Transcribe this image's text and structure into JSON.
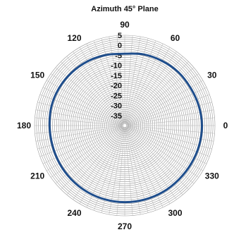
{
  "chart_data": {
    "type": "line",
    "polar": true,
    "title": "Azimuth 45° Plane",
    "angle_ticks": [
      0,
      30,
      60,
      90,
      120,
      150,
      180,
      210,
      240,
      270,
      300,
      330
    ],
    "angle_tick_labels": [
      "0",
      "30",
      "60",
      "90",
      "120",
      "150",
      "180",
      "210",
      "240",
      "270",
      "300",
      "330"
    ],
    "angle_direction": "counterclockwise",
    "angle_zero": "right",
    "radial_ticks": [
      5,
      0,
      -5,
      -10,
      -15,
      -20,
      -25,
      -30,
      -35
    ],
    "radial_tick_labels": [
      "5",
      "0",
      "-5",
      "-10",
      "-15",
      "-20",
      "-25",
      "-30",
      "-35"
    ],
    "rlim": [
      -40,
      5
    ],
    "radial_label_position": "along 90° spoke",
    "grid": true,
    "series": [
      {
        "color": "#1f4e8c",
        "angle": [
          0,
          15,
          30,
          45,
          60,
          75,
          90,
          105,
          120,
          135,
          150,
          165,
          180,
          195,
          210,
          225,
          240,
          255,
          270,
          285,
          300,
          315,
          330,
          345
        ],
        "values": [
          -1.5,
          -1.8,
          -2.2,
          -2.3,
          -2.8,
          -3.3,
          -4.2,
          -3.6,
          -3.0,
          -2.6,
          -2.3,
          -2.2,
          -2.5,
          -2.6,
          -2.4,
          -2.2,
          -2.0,
          -1.9,
          -1.8,
          -1.8,
          -1.8,
          -1.9,
          -1.8,
          -1.6
        ]
      }
    ]
  }
}
